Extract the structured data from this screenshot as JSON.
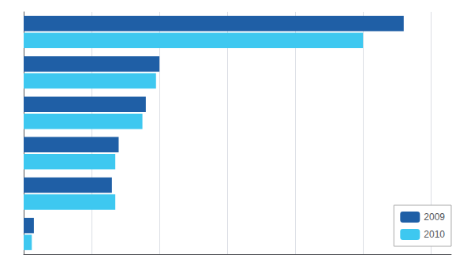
{
  "chart_data": {
    "type": "bar",
    "orientation": "horizontal",
    "categories": [
      null,
      null,
      null,
      null,
      null,
      null
    ],
    "series": [
      {
        "name": "2009",
        "color": "#1F5FA6",
        "values": [
          56000,
          20000,
          18000,
          14000,
          13000,
          1500
        ]
      },
      {
        "name": "2010",
        "color": "#3EC8F0",
        "values": [
          50000,
          19500,
          17500,
          13500,
          13500,
          1200
        ]
      }
    ],
    "xlim": [
      0,
      63000
    ],
    "xticks": [
      10000,
      20000,
      30000,
      40000,
      50000,
      60000
    ],
    "grid": true,
    "tick_labels": false,
    "legend": "lower right"
  }
}
